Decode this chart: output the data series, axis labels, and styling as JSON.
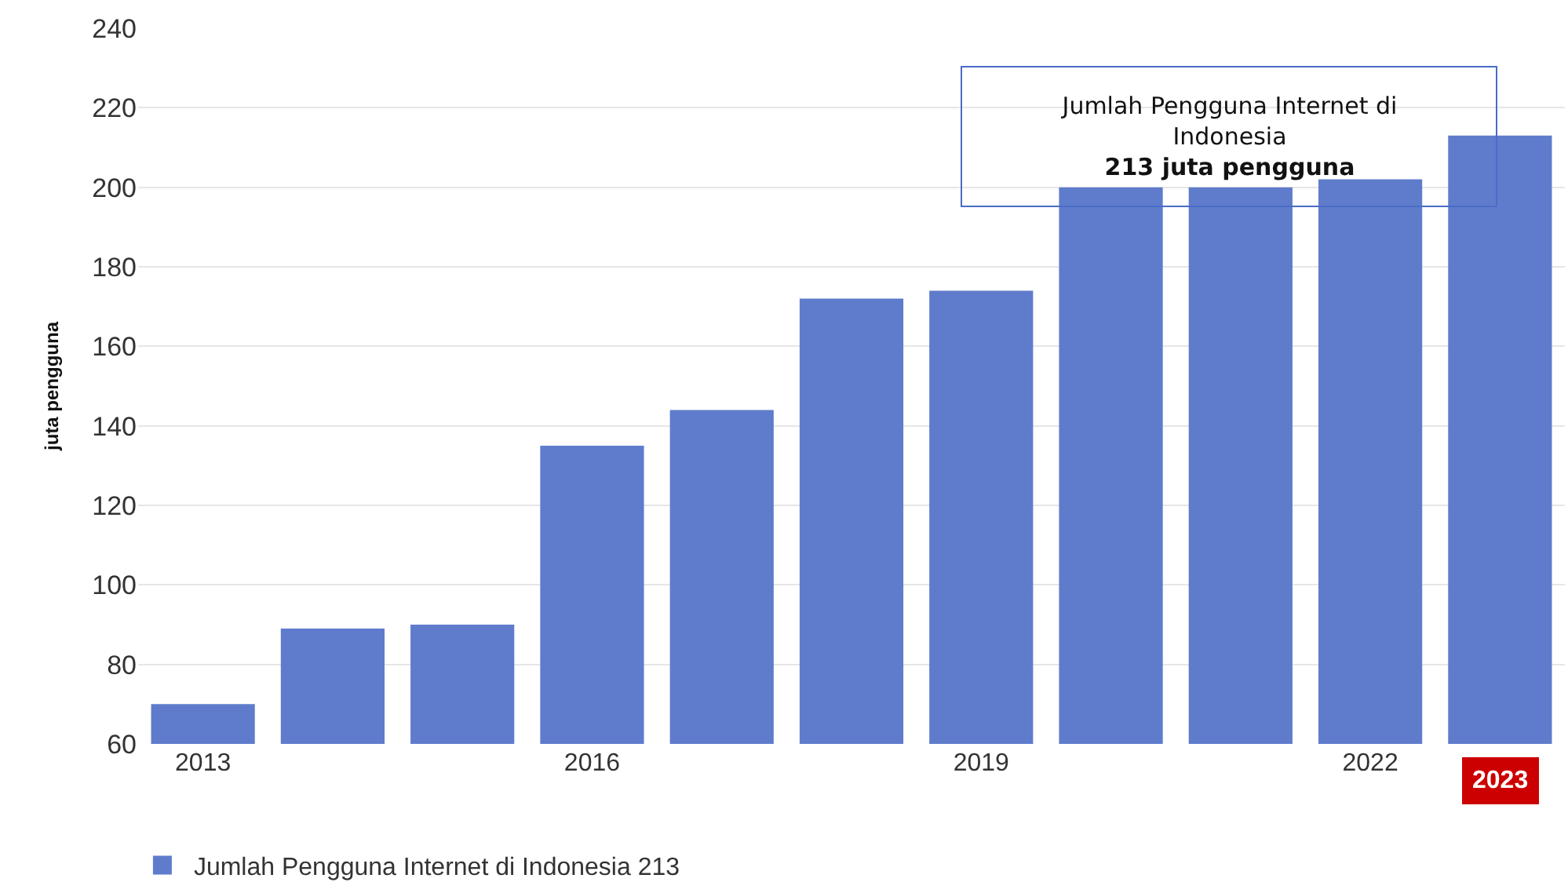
{
  "chart_data": {
    "type": "bar",
    "ylabel": "juta pengguna",
    "categories": [
      "2013",
      null,
      null,
      "2016",
      null,
      null,
      "2019",
      null,
      null,
      "2022",
      "2023"
    ],
    "series": [
      {
        "name": "Jumlah Pengguna Internet di Indonesia 213",
        "color": "#5f7ccc",
        "values": [
          70,
          89,
          90,
          135,
          144,
          172,
          174,
          200,
          200,
          202,
          213
        ]
      }
    ],
    "ylim": [
      60,
      240
    ],
    "yticks": [
      60,
      80,
      100,
      120,
      140,
      160,
      180,
      200,
      220,
      240
    ],
    "grid": "y",
    "legend": "bottom left",
    "annotations": [
      "Jumlah Pengguna Internet di\nIndonesia\n213 juta pengguna"
    ]
  }
}
